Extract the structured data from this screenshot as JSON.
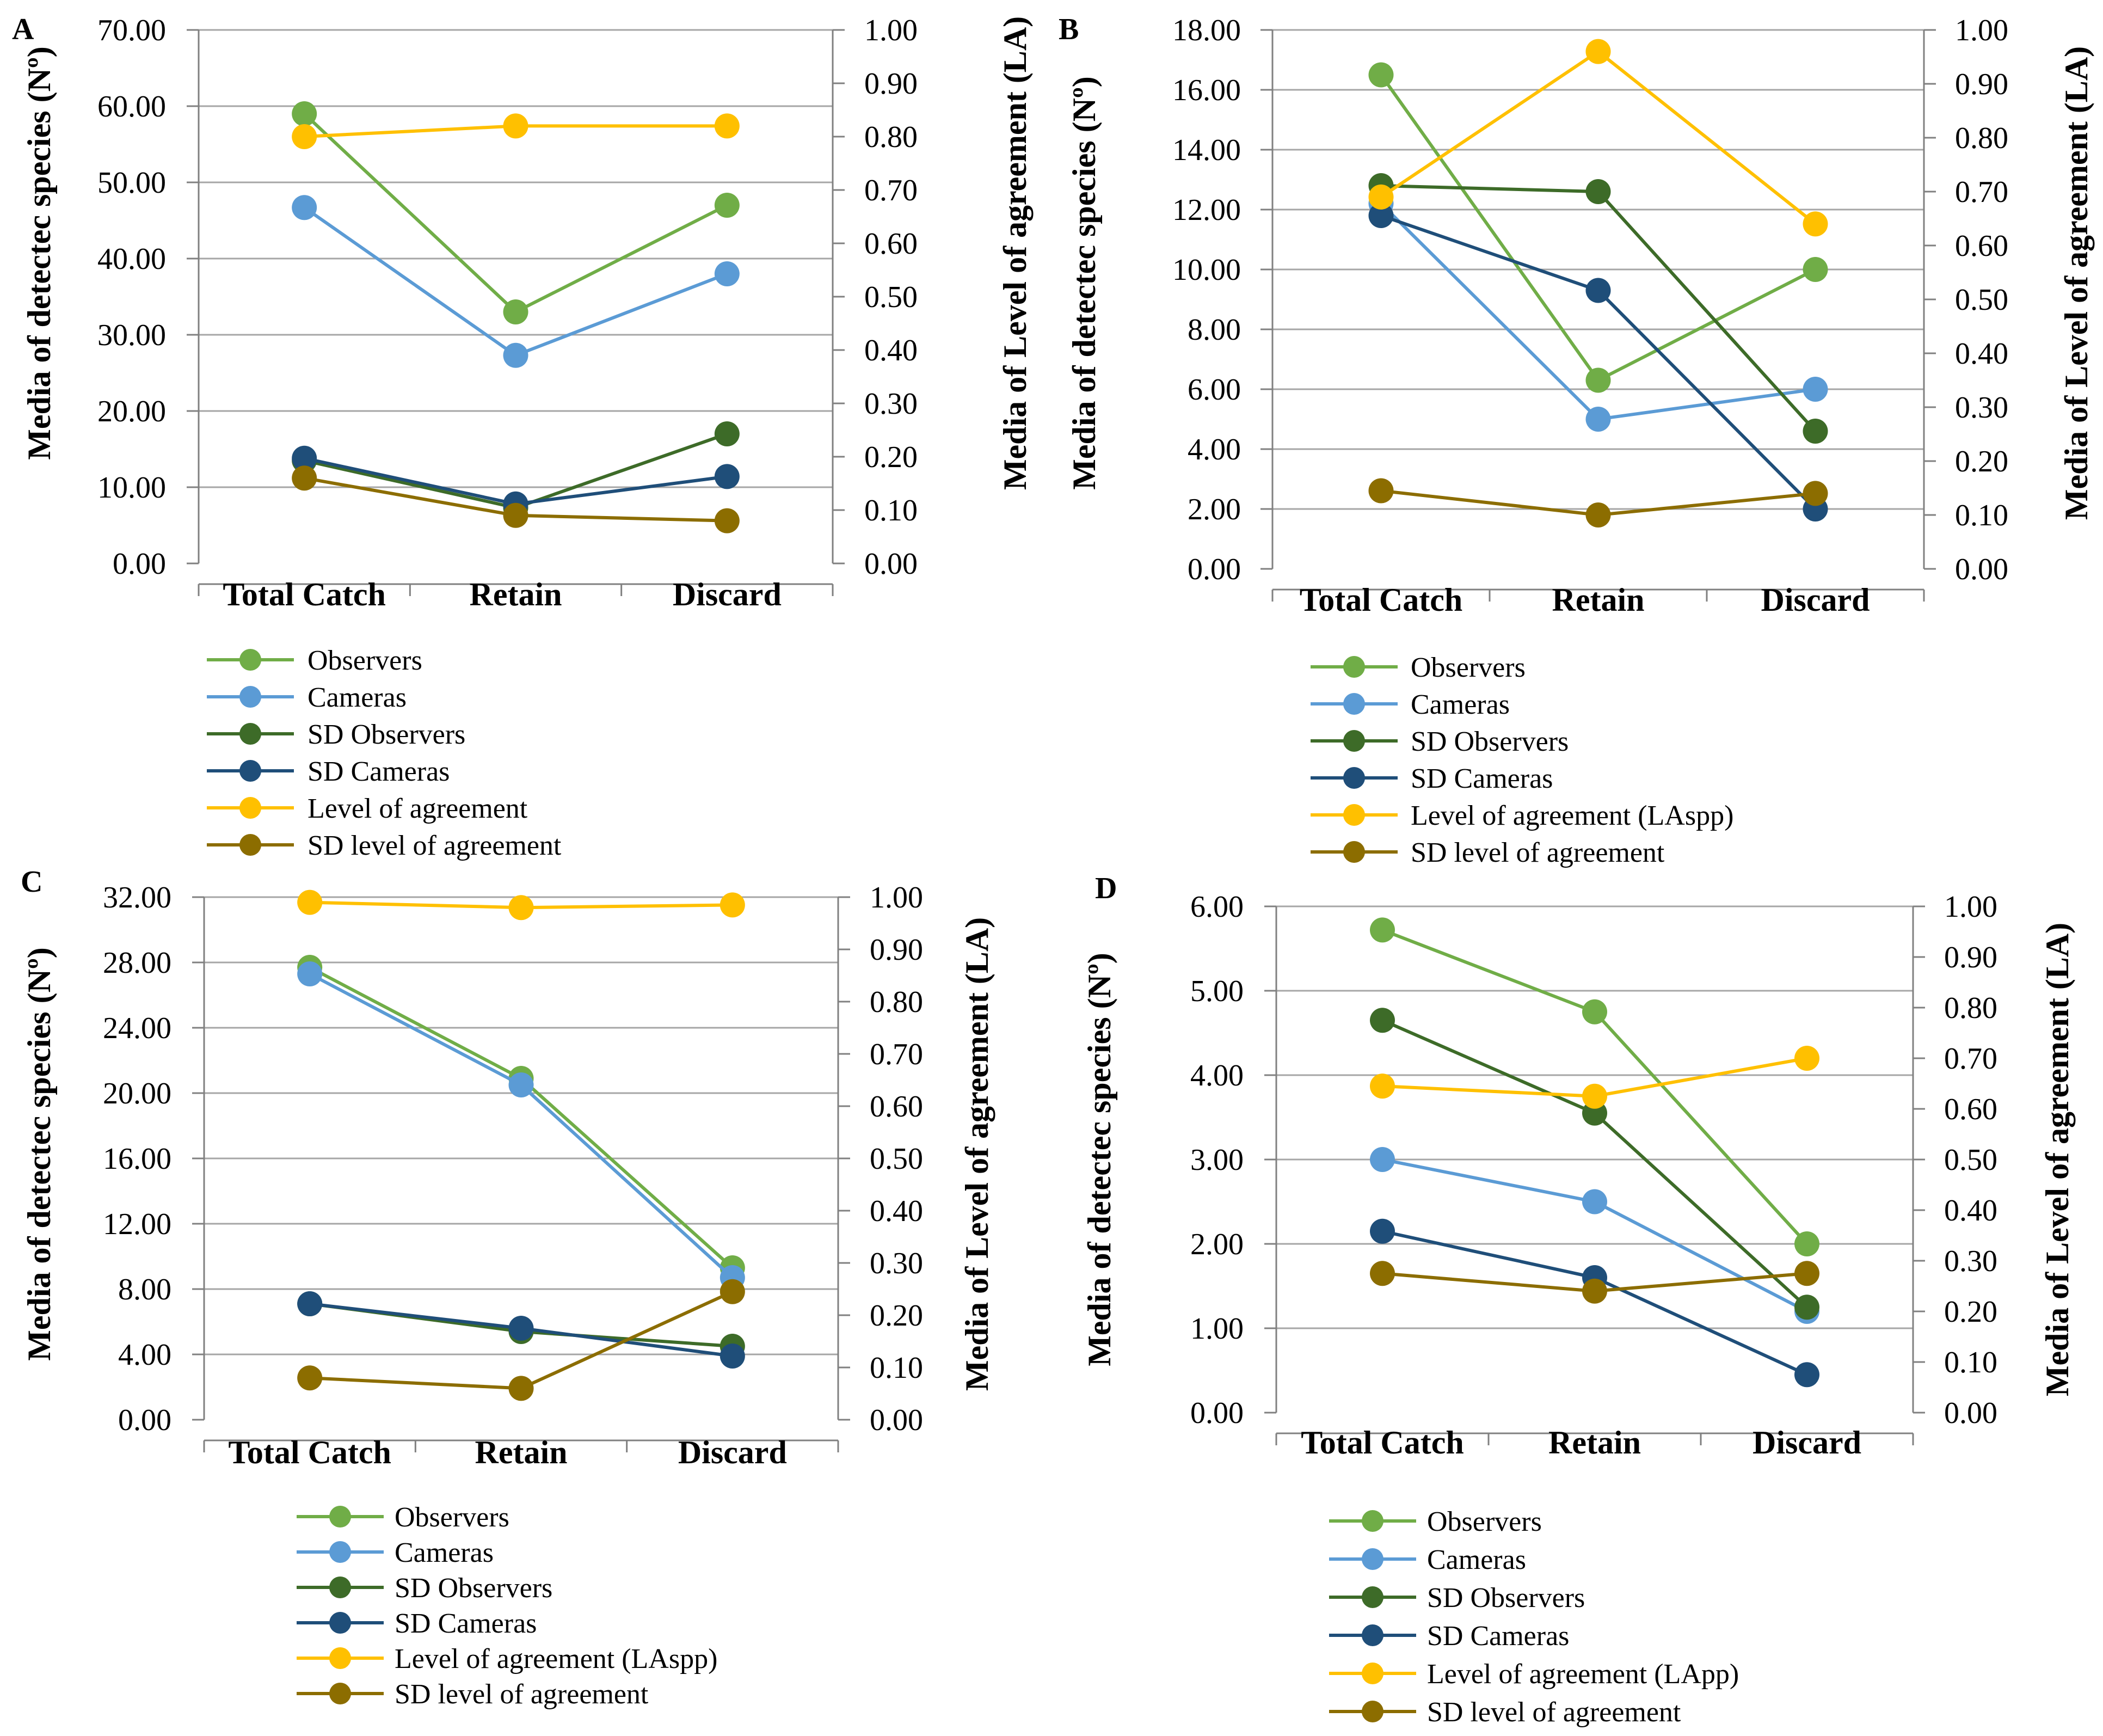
{
  "colors": {
    "observers": "#70ad47",
    "cameras": "#5b9bd5",
    "sd_observers": "#3d6b28",
    "sd_cameras": "#1f4e79",
    "level_agreement": "#ffc000",
    "sd_level_agreement": "#8c6d00",
    "grid": "#a6a6a6",
    "axis": "#808080"
  },
  "chart_data": [
    {
      "id": "A",
      "type": "line",
      "panel_label": "A",
      "categories": [
        "Total Catch",
        "Retain",
        "Discard"
      ],
      "ylabel_left": "Media of detectec species (Nº)",
      "ylabel_right": "Media of Level of agreement (LA)",
      "ylim_left": [
        0,
        70
      ],
      "ylim_right": [
        0,
        1
      ],
      "left_ticks": [
        "0.00",
        "10.00",
        "20.00",
        "30.00",
        "40.00",
        "50.00",
        "60.00",
        "70.00"
      ],
      "right_ticks": [
        "0.00",
        "0.10",
        "0.20",
        "0.30",
        "0.40",
        "0.50",
        "0.60",
        "0.70",
        "0.80",
        "0.90",
        "1.00"
      ],
      "grid": true,
      "legend_position": "bottom",
      "series": [
        {
          "key": "observers",
          "name": "Observers",
          "axis": "left",
          "values": [
            59.0,
            33.0,
            47.0
          ]
        },
        {
          "key": "cameras",
          "name": "Cameras",
          "axis": "left",
          "values": [
            46.7,
            27.3,
            38.0
          ]
        },
        {
          "key": "sd_observers",
          "name": "SD Observers",
          "axis": "left",
          "values": [
            13.5,
            7.3,
            17.0
          ]
        },
        {
          "key": "sd_cameras",
          "name": "SD Cameras",
          "axis": "left",
          "values": [
            13.8,
            7.8,
            11.4
          ]
        },
        {
          "key": "level_agreement",
          "name": "Level of agreement",
          "axis": "right",
          "values": [
            0.8,
            0.82,
            0.82
          ]
        },
        {
          "key": "sd_level_agreement",
          "name": "SD level of agreement",
          "axis": "right",
          "values": [
            0.16,
            0.09,
            0.08
          ]
        }
      ]
    },
    {
      "id": "B",
      "type": "line",
      "panel_label": "B",
      "categories": [
        "Total Catch",
        "Retain",
        "Discard"
      ],
      "ylabel_left": "Media of detectec species (Nº)",
      "ylabel_right": "Media of Level of agreement (LA)",
      "ylim_left": [
        0,
        18
      ],
      "ylim_right": [
        0,
        1
      ],
      "left_ticks": [
        "0.00",
        "2.00",
        "4.00",
        "6.00",
        "8.00",
        "10.00",
        "12.00",
        "14.00",
        "16.00",
        "18.00"
      ],
      "right_ticks": [
        "0.00",
        "0.10",
        "0.20",
        "0.30",
        "0.40",
        "0.50",
        "0.60",
        "0.70",
        "0.80",
        "0.90",
        "1.00"
      ],
      "grid": true,
      "legend_position": "bottom",
      "series": [
        {
          "key": "observers",
          "name": "Observers",
          "axis": "left",
          "values": [
            16.5,
            6.3,
            10.0
          ]
        },
        {
          "key": "cameras",
          "name": "Cameras",
          "axis": "left",
          "values": [
            12.2,
            5.0,
            6.0
          ]
        },
        {
          "key": "sd_observers",
          "name": "SD Observers",
          "axis": "left",
          "values": [
            12.8,
            12.6,
            4.6
          ]
        },
        {
          "key": "sd_cameras",
          "name": "SD Cameras",
          "axis": "left",
          "values": [
            11.8,
            9.3,
            2.0
          ]
        },
        {
          "key": "level_agreement",
          "name": "Level of agreement (LAspp)",
          "axis": "right",
          "values": [
            0.69,
            0.96,
            0.64
          ]
        },
        {
          "key": "sd_level_agreement",
          "name": "SD level of agreement",
          "axis": "right",
          "values": [
            0.145,
            0.1,
            0.14
          ]
        }
      ]
    },
    {
      "id": "C",
      "type": "line",
      "panel_label": "C",
      "categories": [
        "Total Catch",
        "Retain",
        "Discard"
      ],
      "ylabel_left": "Media of detectec species (Nº)",
      "ylabel_right": "Media of Level of agreement (LA)",
      "ylim_left": [
        0,
        32
      ],
      "ylim_right": [
        0,
        1
      ],
      "left_ticks": [
        "0.00",
        "4.00",
        "8.00",
        "12.00",
        "16.00",
        "20.00",
        "24.00",
        "28.00",
        "32.00"
      ],
      "right_ticks": [
        "0.00",
        "0.10",
        "0.20",
        "0.30",
        "0.40",
        "0.50",
        "0.60",
        "0.70",
        "0.80",
        "0.90",
        "1.00"
      ],
      "grid": true,
      "legend_position": "bottom",
      "series": [
        {
          "key": "observers",
          "name": "Observers",
          "axis": "left",
          "values": [
            27.7,
            20.9,
            9.3
          ]
        },
        {
          "key": "cameras",
          "name": "Cameras",
          "axis": "left",
          "values": [
            27.3,
            20.5,
            8.7
          ]
        },
        {
          "key": "sd_observers",
          "name": "SD Observers",
          "axis": "left",
          "values": [
            7.1,
            5.4,
            4.5
          ]
        },
        {
          "key": "sd_cameras",
          "name": "SD Cameras",
          "axis": "left",
          "values": [
            7.1,
            5.6,
            3.9
          ]
        },
        {
          "key": "level_agreement",
          "name": "Level of agreement (LAspp)",
          "axis": "right",
          "values": [
            0.99,
            0.98,
            0.985
          ]
        },
        {
          "key": "sd_level_agreement",
          "name": "SD level of agreement",
          "axis": "right",
          "values": [
            0.08,
            0.06,
            0.245
          ]
        }
      ]
    },
    {
      "id": "D",
      "type": "line",
      "panel_label": "D",
      "categories": [
        "Total Catch",
        "Retain",
        "Discard"
      ],
      "ylabel_left": "Media of detectec species (Nº)",
      "ylabel_right": "Media of Level of agreement (LA)",
      "ylim_left": [
        0,
        6
      ],
      "ylim_right": [
        0,
        1
      ],
      "left_ticks": [
        "0.00",
        "1.00",
        "2.00",
        "3.00",
        "4.00",
        "5.00",
        "6.00"
      ],
      "right_ticks": [
        "0.00",
        "0.10",
        "0.20",
        "0.30",
        "0.40",
        "0.50",
        "0.60",
        "0.70",
        "0.80",
        "0.90",
        "1.00"
      ],
      "grid": true,
      "legend_position": "bottom",
      "series": [
        {
          "key": "observers",
          "name": "Observers",
          "axis": "left",
          "values": [
            5.72,
            4.75,
            2.0
          ]
        },
        {
          "key": "cameras",
          "name": "Cameras",
          "axis": "left",
          "values": [
            3.0,
            2.5,
            1.2
          ]
        },
        {
          "key": "sd_observers",
          "name": "SD Observers",
          "axis": "left",
          "values": [
            4.65,
            3.55,
            1.25
          ]
        },
        {
          "key": "sd_cameras",
          "name": "SD Cameras",
          "axis": "left",
          "values": [
            2.15,
            1.6,
            0.45
          ]
        },
        {
          "key": "level_agreement",
          "name": "Level of agreement (LApp)",
          "axis": "right",
          "values": [
            0.645,
            0.625,
            0.7
          ]
        },
        {
          "key": "sd_level_agreement",
          "name": "SD level of agreement",
          "axis": "right",
          "values": [
            0.275,
            0.24,
            0.275
          ]
        }
      ]
    }
  ]
}
